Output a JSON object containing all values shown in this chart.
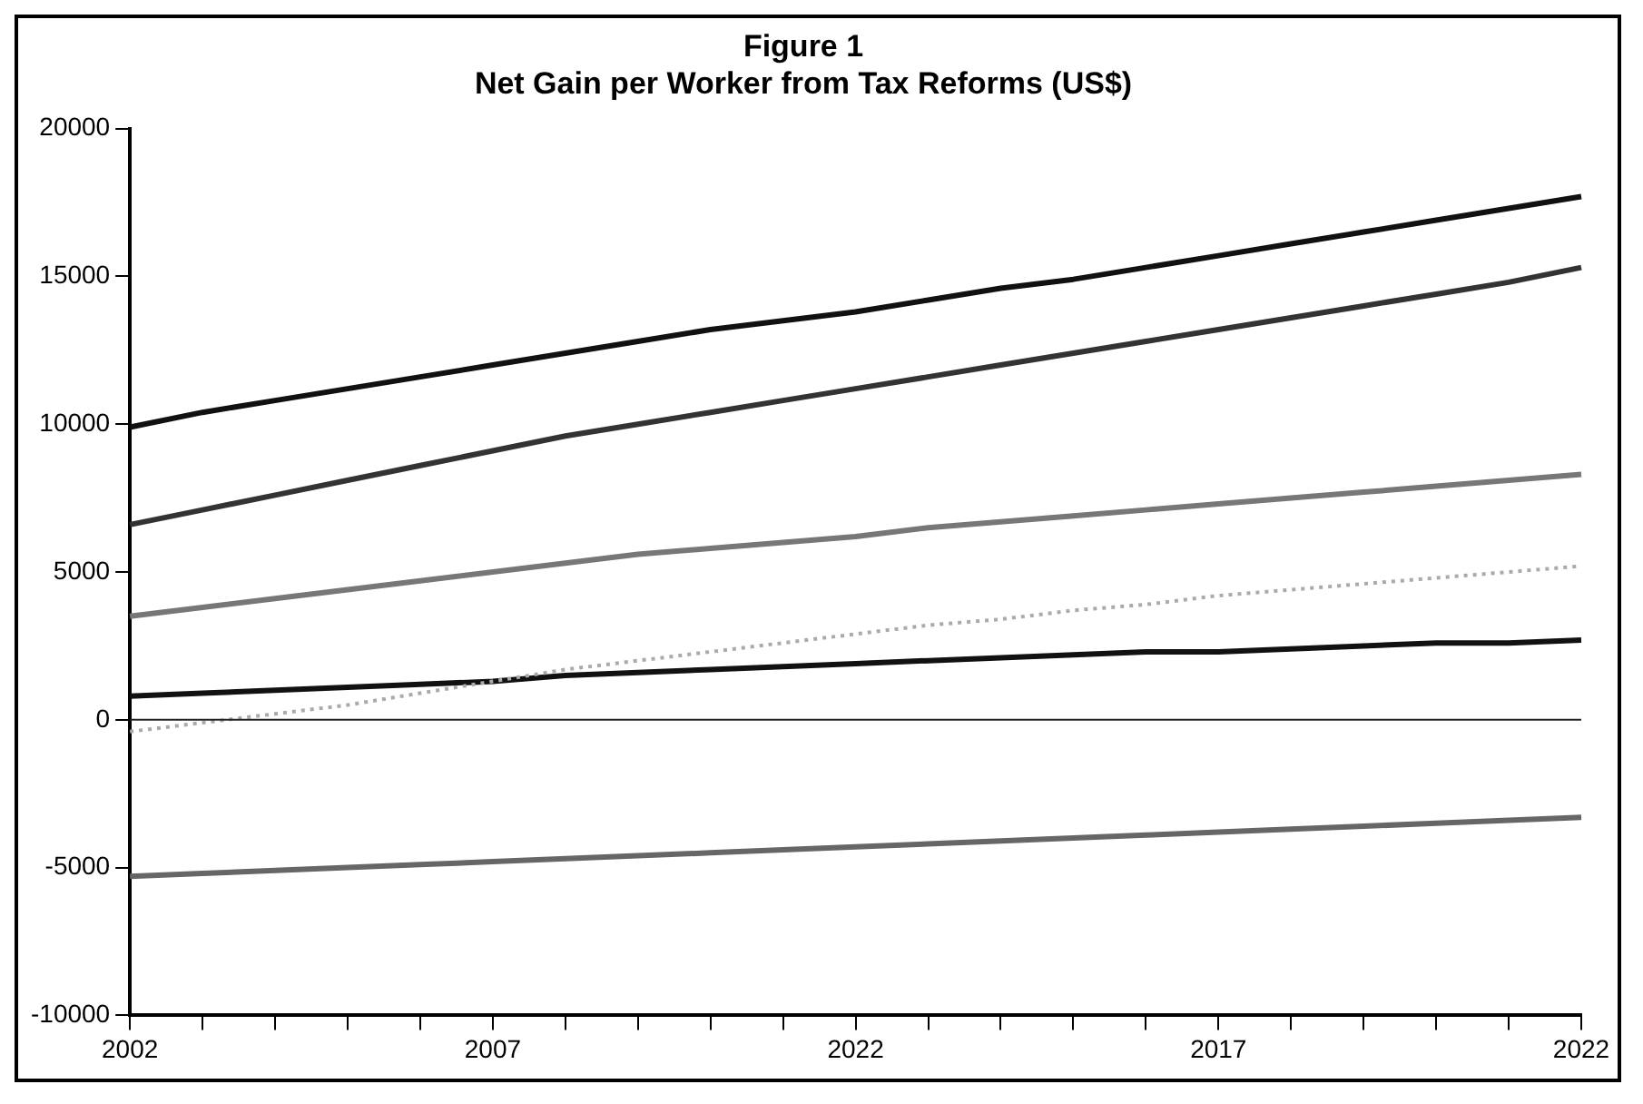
{
  "chart_data": {
    "type": "line",
    "title": "Figure 1",
    "subtitle": "Net Gain per Worker from Tax Reforms (US$)",
    "categories": [
      "2002",
      null,
      null,
      null,
      null,
      "2007",
      null,
      null,
      null,
      null,
      "2022",
      null,
      null,
      null,
      null,
      "2017",
      null,
      null,
      null,
      null,
      "2022"
    ],
    "series": [
      {
        "color": "#111111",
        "values": [
          9900,
          10400,
          10800,
          11200,
          11600,
          12000,
          12400,
          12800,
          13200,
          13500,
          13800,
          14200,
          14600,
          14900,
          15300,
          15700,
          16100,
          16500,
          16900,
          17300,
          17700
        ]
      },
      {
        "color": "#333333",
        "values": [
          6600,
          7100,
          7600,
          8100,
          8600,
          9100,
          9600,
          10000,
          10400,
          10800,
          11200,
          11600,
          12000,
          12400,
          12800,
          13200,
          13600,
          14000,
          14400,
          14800,
          15300
        ]
      },
      {
        "color": "#777777",
        "values": [
          3500,
          3800,
          4100,
          4400,
          4700,
          5000,
          5300,
          5600,
          5800,
          6000,
          6200,
          6500,
          6700,
          6900,
          7100,
          7300,
          7500,
          7700,
          7900,
          8100,
          8300
        ]
      },
      {
        "color": "#aaaaaa",
        "line_style": "dotted",
        "values": [
          -400,
          -100,
          200,
          500,
          900,
          1300,
          1700,
          2000,
          2300,
          2600,
          2900,
          3200,
          3400,
          3700,
          3900,
          4200,
          4400,
          4600,
          4800,
          5000,
          5200
        ]
      },
      {
        "color": "#111111",
        "values": [
          800,
          900,
          1000,
          1100,
          1200,
          1300,
          1500,
          1600,
          1700,
          1800,
          1900,
          2000,
          2100,
          2200,
          2300,
          2300,
          2400,
          2500,
          2600,
          2600,
          2700
        ]
      },
      {
        "color": "#666666",
        "values": [
          -5300,
          -5200,
          -5100,
          -5000,
          -4900,
          -4800,
          -4700,
          -4600,
          -4500,
          -4400,
          -4300,
          -4200,
          -4100,
          -4000,
          -3900,
          -3800,
          -3700,
          -3600,
          -3500,
          -3400,
          -3300
        ]
      }
    ],
    "ylim": [
      -10000,
      20000
    ],
    "yticks": [
      -10000,
      -5000,
      0,
      5000,
      10000,
      15000,
      20000
    ],
    "ref_lines": [
      {
        "axis": "y",
        "value": 0,
        "color": "#222222"
      }
    ],
    "grid": false,
    "legend": false,
    "marker": "none",
    "line_style": "solid"
  }
}
